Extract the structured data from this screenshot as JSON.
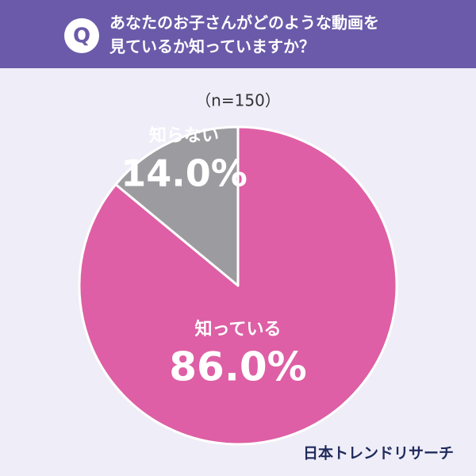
{
  "header": {
    "badge": "Q",
    "title": [
      "あなたのお子さんがどのような動画を",
      "見ているか知っていますか？"
    ]
  },
  "chart_data": {
    "type": "pie",
    "subtitle": "（n=150）",
    "categories": [
      "知っている",
      "知らない"
    ],
    "values": [
      86,
      14
    ],
    "value_labels": [
      "86.0%",
      "14.0%"
    ],
    "colors": [
      "#de5fa5",
      "#9c9ca0"
    ]
  },
  "footer": {
    "brand": "日本トレンドリサーチ"
  }
}
